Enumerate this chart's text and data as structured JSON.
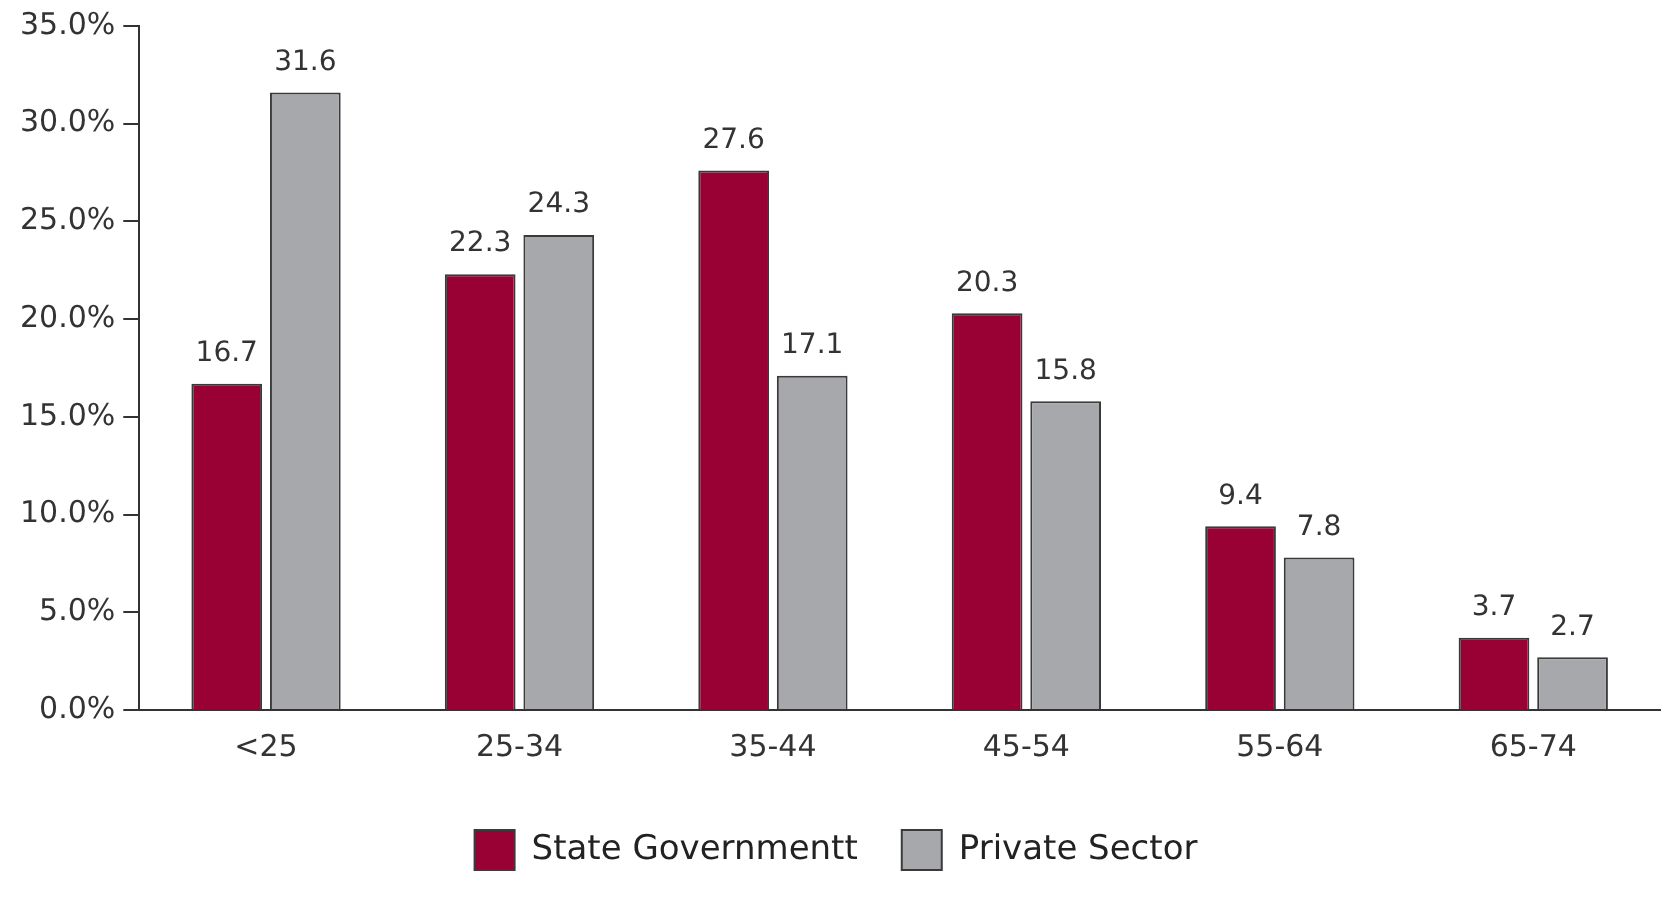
{
  "chart_data": {
    "type": "bar",
    "categories": [
      "<25",
      "25-34",
      "35-44",
      "45-54",
      "55-64",
      "65-74"
    ],
    "series": [
      {
        "name": "State Governmentt",
        "color": "#990033",
        "values": [
          16.7,
          22.3,
          27.6,
          20.3,
          9.4,
          3.7
        ]
      },
      {
        "name": "Private Sector",
        "color": "#a6a8ab",
        "values": [
          31.6,
          24.3,
          17.1,
          15.8,
          7.8,
          2.7
        ]
      }
    ],
    "ylim": [
      0,
      35
    ],
    "yticks": [
      {
        "value": 0,
        "label": "0.0%"
      },
      {
        "value": 5,
        "label": "5.0%"
      },
      {
        "value": 10,
        "label": "10.0%"
      },
      {
        "value": 15,
        "label": "15.0%"
      },
      {
        "value": 20,
        "label": "20.0%"
      },
      {
        "value": 25,
        "label": "25.0%"
      },
      {
        "value": 30,
        "label": "30.0%"
      },
      {
        "value": 35,
        "label": "35.0%"
      }
    ],
    "grid": false,
    "legend": "bottom",
    "data_labels": true
  }
}
